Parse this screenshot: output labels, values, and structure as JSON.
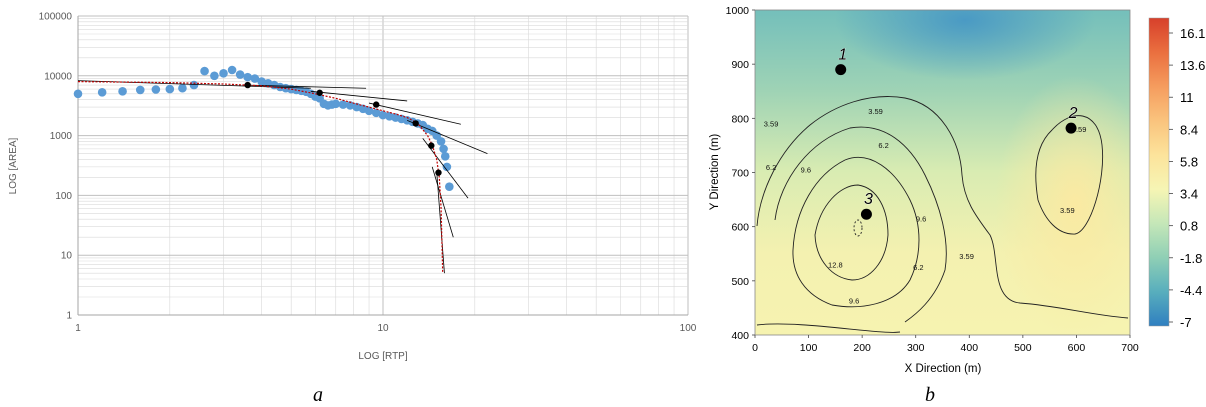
{
  "captions": {
    "left": "a",
    "right": "b"
  },
  "chart_data": [
    {
      "type": "scatter",
      "title": "",
      "xlabel": "LOG [RTP]",
      "ylabel": "LOG [AREA]",
      "x_scale": "log",
      "y_scale": "log",
      "xlim": [
        1,
        100
      ],
      "ylim": [
        1,
        100000
      ],
      "x_ticks": [
        "1",
        "10",
        "100"
      ],
      "y_ticks": [
        "1",
        "10",
        "100",
        "1000",
        "10000",
        "100000"
      ],
      "grid": true,
      "colors": {
        "points": "#5b9bd5",
        "fit": "#c00000",
        "tangents": "#000000",
        "breakpoints": "#000000",
        "grid": "#d9d9d9",
        "major_grid": "#bfbfbf"
      },
      "series": [
        {
          "kind": "points",
          "x": [
            1.0,
            1.2,
            1.4,
            1.6,
            1.8,
            2.0,
            2.2,
            2.4,
            2.6,
            2.8,
            3.0,
            3.2,
            3.4,
            3.6,
            3.8,
            4.0,
            4.2,
            4.4,
            4.6,
            4.8,
            5.0,
            5.2,
            5.4,
            5.6,
            5.8,
            6.0,
            6.2,
            6.4,
            6.6,
            6.8,
            7.0,
            7.4,
            7.8,
            8.2,
            8.6,
            9.0,
            9.5,
            10.0,
            10.5,
            11.0,
            11.5,
            12.0,
            12.5,
            13.0,
            13.5,
            14.0,
            14.5,
            15.0,
            15.5,
            15.8,
            16.0,
            16.2,
            16.5
          ],
          "y": [
            5000,
            5300,
            5500,
            5800,
            5900,
            6000,
            6200,
            7000,
            12000,
            10000,
            11000,
            12500,
            10500,
            9500,
            9000,
            8000,
            7500,
            7000,
            6500,
            6200,
            6000,
            5800,
            5600,
            5400,
            5000,
            4500,
            4200,
            3400,
            3200,
            3300,
            3400,
            3300,
            3200,
            3000,
            2800,
            2600,
            2400,
            2200,
            2100,
            2000,
            1900,
            1800,
            1700,
            1600,
            1500,
            1300,
            1200,
            1000,
            800,
            600,
            450,
            300,
            140
          ]
        },
        {
          "kind": "fit",
          "x": [
            1.0,
            2.0,
            3.0,
            4.0,
            5.0,
            6.0,
            7.0,
            8.0,
            9.0,
            10.0,
            11.0,
            12.0,
            13.0,
            14.0,
            14.5,
            15.0,
            15.3,
            15.5,
            15.7
          ],
          "y": [
            8000,
            7700,
            7300,
            6800,
            6000,
            5000,
            4200,
            3500,
            3000,
            2600,
            2300,
            2000,
            1600,
            1000,
            700,
            400,
            200,
            60,
            5
          ]
        },
        {
          "kind": "breakpoints",
          "x": [
            3.6,
            6.2,
            9.5,
            12.8,
            14.4,
            15.2
          ],
          "y": [
            7000,
            5200,
            3300,
            1600,
            680,
            240
          ]
        },
        {
          "kind": "tangents",
          "segments": [
            {
              "x": [
                1.0,
                5.8
              ],
              "y": [
                8300,
                6200
              ]
            },
            {
              "x": [
                3.5,
                8.8
              ],
              "y": [
                7000,
                6200
              ]
            },
            {
              "x": [
                5.8,
                12.0
              ],
              "y": [
                5500,
                3800
              ]
            },
            {
              "x": [
                9.0,
                18.0
              ],
              "y": [
                3500,
                1550
              ]
            },
            {
              "x": [
                12.0,
                22.0
              ],
              "y": [
                1800,
                500
              ]
            },
            {
              "x": [
                13.5,
                19.0
              ],
              "y": [
                900,
                90
              ]
            },
            {
              "x": [
                14.5,
                17.0
              ],
              "y": [
                300,
                20
              ]
            },
            {
              "x": [
                15.0,
                15.9
              ],
              "y": [
                250,
                5
              ]
            }
          ]
        }
      ]
    },
    {
      "type": "heatmap",
      "title": "",
      "xlabel": "X Direction (m)",
      "ylabel": "Y Direction (m)",
      "xlim": [
        0,
        700
      ],
      "ylim": [
        400,
        1000
      ],
      "x_ticks": [
        "0",
        "100",
        "200",
        "300",
        "400",
        "500",
        "600",
        "700"
      ],
      "y_ticks": [
        "400",
        "500",
        "600",
        "700",
        "800",
        "900",
        "1000"
      ],
      "colorbar_ticks": [
        "16.1",
        "13.6",
        "11",
        "8.4",
        "5.8",
        "3.4",
        "0.8",
        "-1.8",
        "-4.4",
        "-7"
      ],
      "colorbar_stops": [
        "#d7402b",
        "#ea6f3f",
        "#f59c5e",
        "#fac37d",
        "#fce39b",
        "#f6f5b4",
        "#c5e7b8",
        "#8fcfb5",
        "#58aebd",
        "#2f7fc0"
      ],
      "contour_labels": [
        {
          "text": "3.59",
          "x": 30,
          "y": 785
        },
        {
          "text": "3.59",
          "x": 225,
          "y": 808
        },
        {
          "text": "3.59",
          "x": 605,
          "y": 775
        },
        {
          "text": "3.59",
          "x": 583,
          "y": 625
        },
        {
          "text": "3.59",
          "x": 395,
          "y": 540
        },
        {
          "text": "6.2",
          "x": 240,
          "y": 745
        },
        {
          "text": "6.2",
          "x": 30,
          "y": 705
        },
        {
          "text": "6.2",
          "x": 305,
          "y": 520
        },
        {
          "text": "9.6",
          "x": 95,
          "y": 700
        },
        {
          "text": "9.6",
          "x": 310,
          "y": 610
        },
        {
          "text": "9.6",
          "x": 185,
          "y": 458
        },
        {
          "text": "12.8",
          "x": 150,
          "y": 525
        }
      ],
      "points": [
        {
          "label": "1",
          "x": 160,
          "y": 890
        },
        {
          "label": "2",
          "x": 590,
          "y": 782
        },
        {
          "label": "3",
          "x": 208,
          "y": 623
        }
      ]
    }
  ]
}
